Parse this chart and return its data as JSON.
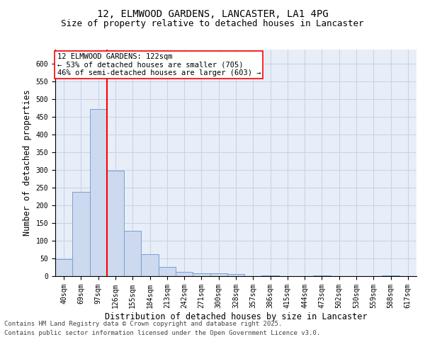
{
  "title_line1": "12, ELMWOOD GARDENS, LANCASTER, LA1 4PG",
  "title_line2": "Size of property relative to detached houses in Lancaster",
  "xlabel": "Distribution of detached houses by size in Lancaster",
  "ylabel": "Number of detached properties",
  "categories": [
    "40sqm",
    "69sqm",
    "97sqm",
    "126sqm",
    "155sqm",
    "184sqm",
    "213sqm",
    "242sqm",
    "271sqm",
    "300sqm",
    "328sqm",
    "357sqm",
    "386sqm",
    "415sqm",
    "444sqm",
    "473sqm",
    "502sqm",
    "530sqm",
    "559sqm",
    "588sqm",
    "617sqm"
  ],
  "values": [
    48,
    238,
    473,
    298,
    128,
    63,
    26,
    13,
    8,
    9,
    7,
    0,
    2,
    0,
    0,
    3,
    0,
    0,
    0,
    2,
    0
  ],
  "bar_color": "#ccd9ee",
  "bar_edge_color": "#7a9fd4",
  "redline_index": 2.5,
  "redline_label": "12 ELMWOOD GARDENS: 122sqm",
  "annotation_line2": "← 53% of detached houses are smaller (705)",
  "annotation_line3": "46% of semi-detached houses are larger (603) →",
  "annotation_box_color": "white",
  "annotation_border_color": "red",
  "redline_color": "red",
  "grid_color": "#c8d4e8",
  "bg_color": "#e8eef8",
  "ylim": [
    0,
    640
  ],
  "yticks": [
    0,
    50,
    100,
    150,
    200,
    250,
    300,
    350,
    400,
    450,
    500,
    550,
    600
  ],
  "footer_line1": "Contains HM Land Registry data © Crown copyright and database right 2025.",
  "footer_line2": "Contains public sector information licensed under the Open Government Licence v3.0.",
  "title_fontsize": 10,
  "subtitle_fontsize": 9,
  "axis_label_fontsize": 8.5,
  "tick_fontsize": 7,
  "footer_fontsize": 6.5,
  "annotation_fontsize": 7.5
}
